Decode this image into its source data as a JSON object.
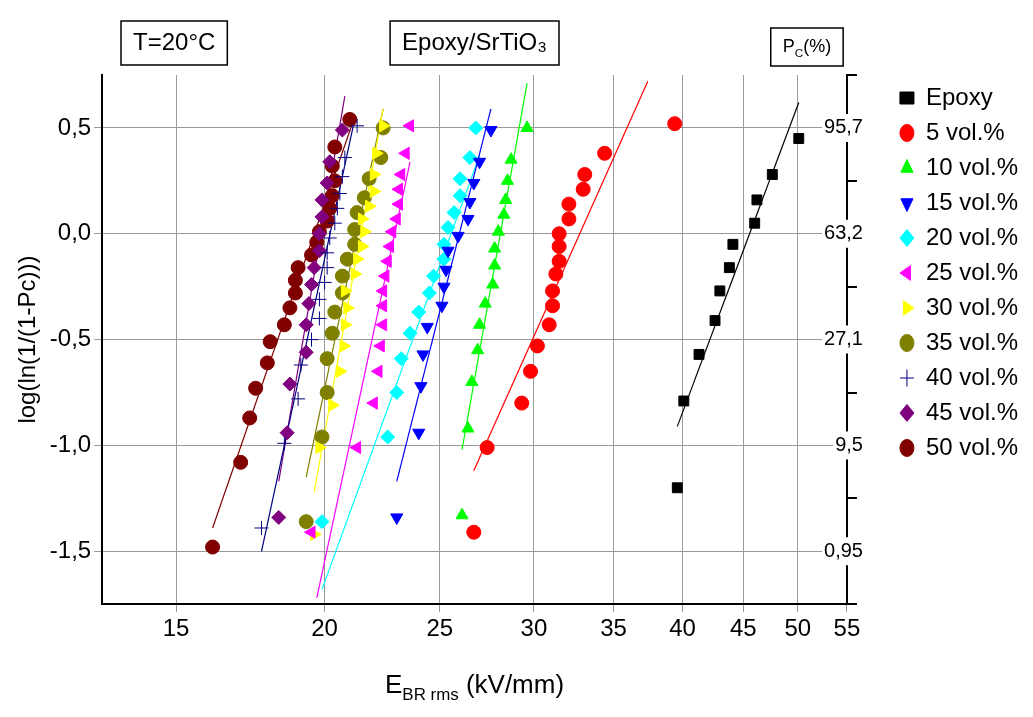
{
  "chart_data": {
    "type": "scatter",
    "title": "Epoxy/SrTiO₃",
    "xlabel": "E$_{BR rms}$ (kV/mm)",
    "ylabel": "log(ln(1/(1-Pc)))",
    "annotations": [
      "T=20°C",
      "P$_{C}$(%)"
    ],
    "log": "x",
    "grid": true,
    "legend": "right",
    "xlim": [
      13,
      55
    ],
    "xticks": [
      15,
      20,
      25,
      30,
      35,
      40,
      45,
      50,
      55
    ],
    "ylim": [
      -1.75,
      0.75
    ],
    "yticks": [
      {
        "value": -1.5,
        "label": "-1,5"
      },
      {
        "value": -1,
        "label": "-1,0"
      },
      {
        "value": -0.5,
        "label": "-0,5"
      },
      {
        "value": 0,
        "label": "0,0"
      },
      {
        "value": 0.5,
        "label": "0,5"
      }
    ],
    "y2_categories": [
      null,
      "95,7",
      null,
      "63,2",
      null,
      "27,1",
      null,
      "9,5",
      null,
      "0,95",
      null
    ],
    "series": [
      {
        "name": "Epoxy",
        "type": "scatter",
        "marker": "square",
        "color": "#000000",
        "x": [
          50.1,
          47.6,
          46.2,
          46.0,
          44.1,
          43.8,
          43.0,
          42.6,
          41.3,
          40.1,
          39.6
        ],
        "values": [
          0.45,
          0.28,
          0.16,
          0.05,
          -0.05,
          -0.16,
          -0.27,
          -0.41,
          -0.57,
          -0.79,
          -1.2
        ]
      },
      {
        "name": "5 vol.%",
        "type": "scatter",
        "marker": "circle",
        "color": "#ff0000",
        "x": [
          26.7,
          27.4,
          29.3,
          29.8,
          30.2,
          30.9,
          31.1,
          31.1,
          31.3,
          31.5,
          31.5,
          31.5,
          32.1,
          32.1,
          33.0,
          33.1,
          34.4,
          39.4
        ],
        "values": [
          -1.41,
          -1.01,
          -0.8,
          -0.65,
          -0.53,
          -0.43,
          -0.34,
          -0.27,
          -0.19,
          -0.13,
          -0.06,
          0.0,
          0.07,
          0.14,
          0.21,
          0.28,
          0.38,
          0.52
        ]
      },
      {
        "name": "10 vol.%",
        "type": "scatter",
        "marker": "triangle",
        "color": "#00ff00",
        "x": [
          26.1,
          26.4,
          26.6,
          26.9,
          27.0,
          27.3,
          27.7,
          27.8,
          27.8,
          28.0,
          28.3,
          28.4,
          28.5,
          28.7,
          29.6
        ],
        "values": [
          -1.33,
          -0.92,
          -0.7,
          -0.55,
          -0.43,
          -0.33,
          -0.24,
          -0.15,
          -0.07,
          0.01,
          0.09,
          0.16,
          0.25,
          0.35,
          0.5
        ]
      },
      {
        "name": "15 vol.%",
        "type": "scatter",
        "marker": "triangle-down",
        "color": "#0000ff",
        "x": [
          23.0,
          24.0,
          24.1,
          24.2,
          24.4,
          25.1,
          25.2,
          25.3,
          25.4,
          25.9,
          26.4,
          26.5,
          26.7,
          27.0,
          27.6
        ],
        "values": [
          -1.34,
          -0.94,
          -0.72,
          -0.57,
          -0.44,
          -0.34,
          -0.25,
          -0.17,
          -0.08,
          -0.01,
          0.07,
          0.15,
          0.24,
          0.34,
          0.49
        ]
      },
      {
        "name": "20 vol.%",
        "type": "scatter",
        "marker": "diamond",
        "color": "#00ffff",
        "x": [
          19.9,
          22.6,
          23.0,
          23.2,
          23.6,
          24.0,
          24.5,
          24.7,
          25.2,
          25.2,
          25.4,
          25.7,
          26.0,
          26.0,
          26.5,
          26.8
        ],
        "values": [
          -1.36,
          -0.96,
          -0.75,
          -0.59,
          -0.47,
          -0.37,
          -0.28,
          -0.2,
          -0.12,
          -0.05,
          0.03,
          0.1,
          0.18,
          0.26,
          0.36,
          0.5
        ]
      },
      {
        "name": "25 vol.%",
        "type": "scatter",
        "marker": "triangle-left",
        "color": "#ff00ff",
        "x": [
          19.5,
          21.3,
          22.0,
          22.2,
          22.3,
          22.4,
          22.4,
          22.4,
          22.5,
          22.6,
          22.7,
          22.8,
          23.0,
          23.1,
          23.1,
          23.2,
          23.4,
          23.6
        ],
        "values": [
          -1.41,
          -1.01,
          -0.8,
          -0.65,
          -0.53,
          -0.43,
          -0.34,
          -0.27,
          -0.2,
          -0.13,
          -0.06,
          0.01,
          0.07,
          0.14,
          0.21,
          0.28,
          0.38,
          0.51
        ]
      },
      {
        "name": "30 vol.%",
        "type": "scatter",
        "marker": "triangle-right",
        "color": "#ffff00",
        "x": [
          19.6,
          19.8,
          20.3,
          20.6,
          20.75,
          20.8,
          20.9,
          20.8,
          21.2,
          21.3,
          21.5,
          21.6,
          21.5,
          21.8,
          22.0,
          22.0,
          22.1,
          22.4
        ],
        "values": [
          -1.42,
          -1.01,
          -0.81,
          -0.65,
          -0.53,
          -0.43,
          -0.35,
          -0.27,
          -0.19,
          -0.12,
          -0.06,
          0.01,
          0.07,
          0.13,
          0.2,
          0.28,
          0.38,
          0.51
        ]
      },
      {
        "name": "35 vol.%",
        "type": "scatter",
        "marker": "circle",
        "color": "#808000",
        "x": [
          19.3,
          19.9,
          20.1,
          20.1,
          20.3,
          20.4,
          20.7,
          20.7,
          20.9,
          21.2,
          21.2,
          21.3,
          21.6,
          21.8,
          22.3,
          22.4
        ],
        "values": [
          -1.36,
          -0.96,
          -0.75,
          -0.59,
          -0.47,
          -0.37,
          -0.28,
          -0.2,
          -0.12,
          -0.05,
          0.02,
          0.1,
          0.17,
          0.26,
          0.36,
          0.5
        ]
      },
      {
        "name": "40 vol.%",
        "type": "scatter",
        "marker": "cross",
        "color": "#000080",
        "x": [
          17.7,
          18.5,
          19.0,
          19.1,
          19.5,
          19.8,
          19.8,
          20.0,
          20.1,
          20.1,
          20.2,
          20.4,
          20.5,
          20.6,
          20.7,
          20.8,
          21.3
        ],
        "values": [
          -1.39,
          -0.99,
          -0.78,
          -0.62,
          -0.5,
          -0.4,
          -0.31,
          -0.23,
          -0.16,
          -0.09,
          -0.02,
          0.05,
          0.12,
          0.19,
          0.27,
          0.36,
          0.51
        ]
      },
      {
        "name": "45 vol.%",
        "type": "scatter",
        "marker": "diamond",
        "color": "#800080",
        "x": [
          18.3,
          18.6,
          18.7,
          19.3,
          19.3,
          19.4,
          19.5,
          19.6,
          19.8,
          19.8,
          19.9,
          19.9,
          20.1,
          20.2,
          20.7
        ],
        "values": [
          -1.34,
          -0.94,
          -0.71,
          -0.56,
          -0.43,
          -0.33,
          -0.24,
          -0.16,
          -0.08,
          0.0,
          0.08,
          0.16,
          0.24,
          0.34,
          0.49
        ]
      },
      {
        "name": "50 vol.%",
        "type": "scatter",
        "marker": "circle",
        "color": "#800000",
        "x": [
          16.1,
          17.0,
          17.3,
          17.5,
          17.9,
          18.0,
          18.5,
          18.7,
          18.9,
          18.9,
          19.0,
          19.5,
          19.7,
          19.8,
          20.1,
          20.2,
          20.3,
          20.4,
          20.3,
          20.4,
          21.0
        ],
        "values": [
          -1.48,
          -1.08,
          -0.87,
          -0.73,
          -0.61,
          -0.51,
          -0.43,
          -0.35,
          -0.28,
          -0.22,
          -0.16,
          -0.1,
          -0.04,
          0.01,
          0.06,
          0.12,
          0.18,
          0.25,
          0.32,
          0.41,
          0.54
        ]
      },
      {
        "type": "line",
        "marker": "none",
        "color": "#000000",
        "x": [
          39.6,
          50.1
        ],
        "values": [
          -0.91,
          0.62
        ]
      },
      {
        "type": "line",
        "marker": "none",
        "color": "#ff0000",
        "x": [
          26.7,
          37.4
        ],
        "values": [
          -1.12,
          0.72
        ]
      },
      {
        "type": "line",
        "marker": "none",
        "color": "#00ff00",
        "x": [
          26.1,
          29.6
        ],
        "values": [
          -1.02,
          0.71
        ]
      },
      {
        "type": "line",
        "marker": "none",
        "color": "#0000ff",
        "x": [
          23.0,
          27.6
        ],
        "values": [
          -1.17,
          0.59
        ]
      },
      {
        "type": "line",
        "marker": "none",
        "color": "#00ffff",
        "x": [
          19.9,
          27.0
        ],
        "values": [
          -1.68,
          0.37
        ]
      },
      {
        "type": "line",
        "marker": "none",
        "color": "#ff00ff",
        "x": [
          19.7,
          23.6
        ],
        "values": [
          -1.72,
          0.34
        ]
      },
      {
        "type": "line",
        "marker": "none",
        "color": "#ffff00",
        "x": [
          19.6,
          22.4
        ],
        "values": [
          -1.22,
          0.59
        ]
      },
      {
        "type": "line",
        "marker": "none",
        "color": "#808000",
        "x": [
          19.3,
          22.4
        ],
        "values": [
          -1.15,
          0.59
        ]
      },
      {
        "type": "line",
        "marker": "none",
        "color": "#000080",
        "x": [
          17.7,
          21.2
        ],
        "values": [
          -1.5,
          0.54
        ]
      },
      {
        "type": "line",
        "marker": "none",
        "color": "#800080",
        "x": [
          18.3,
          20.8
        ],
        "values": [
          -1.17,
          0.65
        ]
      },
      {
        "type": "line",
        "marker": "none",
        "color": "#800000",
        "x": [
          16.1,
          21.1
        ],
        "values": [
          -1.39,
          0.52
        ]
      }
    ]
  }
}
